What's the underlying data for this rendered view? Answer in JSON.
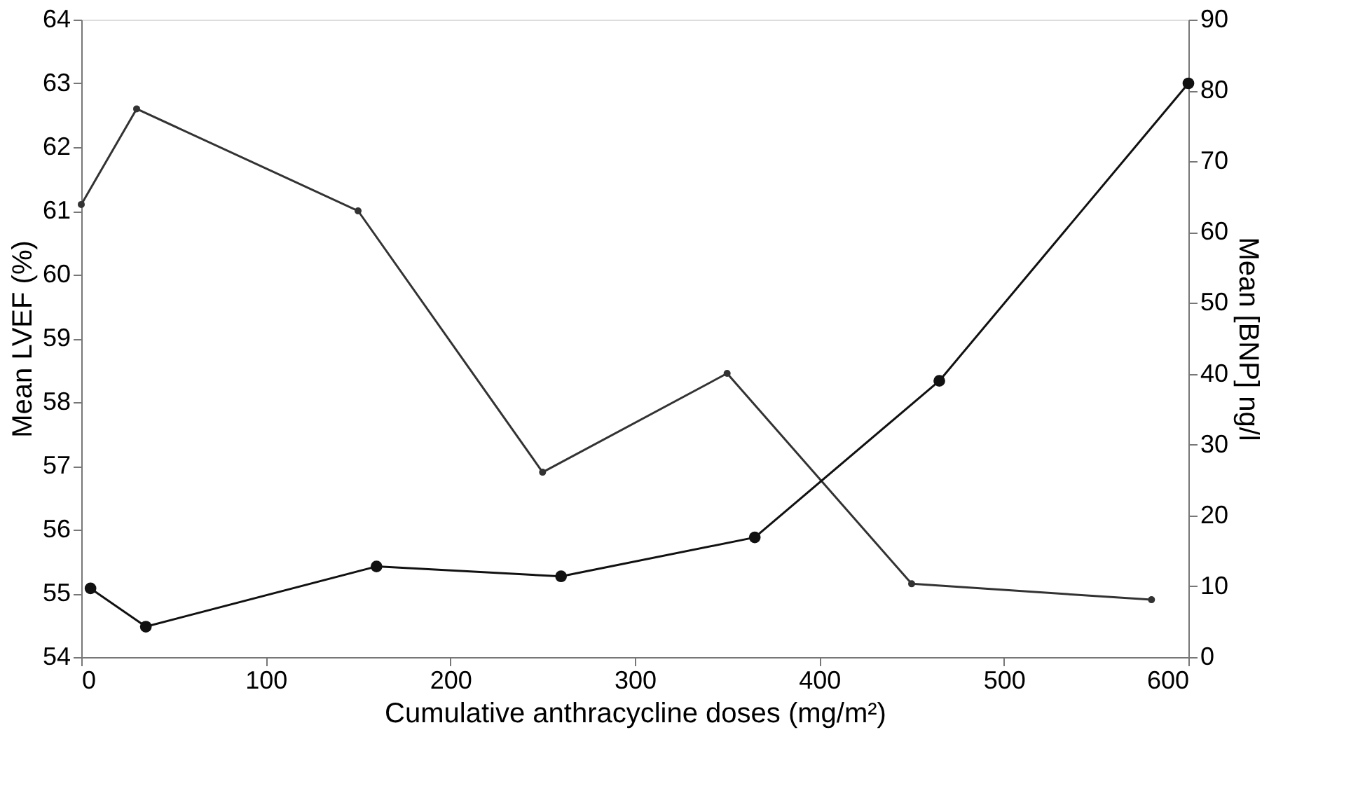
{
  "chart_data": {
    "type": "line",
    "xlabel": "Cumulative anthracycline doses (mg/m²)",
    "ylabel": "Mean LVEF (%)",
    "y2label": "Mean [BNP] ng/l",
    "xlim": [
      0,
      600
    ],
    "xticks": [
      0,
      100,
      200,
      300,
      400,
      500,
      600
    ],
    "ylim": [
      54,
      64
    ],
    "yticks": [
      54,
      55,
      56,
      57,
      58,
      59,
      60,
      61,
      62,
      63,
      64
    ],
    "y2lim": [
      0,
      90
    ],
    "y2ticks": [
      0,
      10,
      20,
      30,
      40,
      50,
      60,
      70,
      80,
      90
    ],
    "grid": false,
    "marker": "circle",
    "line_style": "solid",
    "series": [
      {
        "color": "#333333",
        "x": [
          0,
          30,
          150,
          250,
          350,
          450,
          580
        ],
        "values": [
          61.1,
          62.6,
          61.0,
          56.9,
          58.45,
          55.15,
          54.9
        ]
      },
      {
        "color": "#111111",
        "axis": "y2",
        "x": [
          5,
          35,
          160,
          260,
          365,
          465,
          600
        ],
        "values": [
          9.7,
          4.3,
          12.8,
          11.4,
          16.9,
          39,
          81
        ]
      }
    ]
  }
}
